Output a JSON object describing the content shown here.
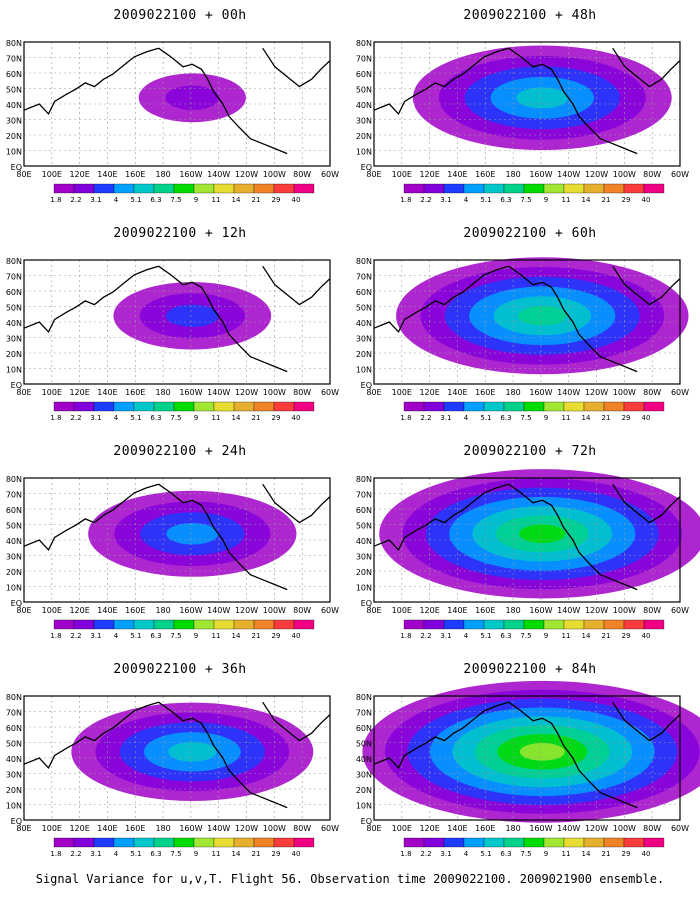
{
  "colorbar": {
    "labels": [
      "1.8",
      "2.2",
      "3.1",
      "4",
      "5.1",
      "6.3",
      "7.5",
      "9",
      "11",
      "14",
      "21",
      "29",
      "40"
    ],
    "colors": [
      "#a000c8",
      "#8200dc",
      "#1e3cff",
      "#00a0ff",
      "#00c8c8",
      "#00d28c",
      "#00dc00",
      "#a0e632",
      "#e6dc32",
      "#e6af2d",
      "#f08228",
      "#fa3c3c",
      "#f00082"
    ]
  },
  "lat_labels": [
    "80N",
    "70N",
    "60N",
    "50N",
    "40N",
    "30N",
    "20N",
    "10N",
    "EQ"
  ],
  "lon_labels": [
    "80E",
    "100E",
    "120E",
    "140E",
    "160E",
    "180",
    "160W",
    "140W",
    "120W",
    "100W",
    "80W",
    "60W"
  ],
  "panels": [
    {
      "title": "2009022100 + 00h",
      "coverage": 0.2
    },
    {
      "title": "2009022100 + 48h",
      "coverage": 0.65
    },
    {
      "title": "2009022100 + 12h",
      "coverage": 0.35
    },
    {
      "title": "2009022100 + 60h",
      "coverage": 0.75
    },
    {
      "title": "2009022100 + 24h",
      "coverage": 0.5
    },
    {
      "title": "2009022100 + 72h",
      "coverage": 0.85
    },
    {
      "title": "2009022100 + 36h",
      "coverage": 0.6
    },
    {
      "title": "2009022100 + 84h",
      "coverage": 0.95
    }
  ],
  "caption": "Signal Variance for u,v,T. Flight 56. Observation time 2009022100. 2009021900 ensemble."
}
